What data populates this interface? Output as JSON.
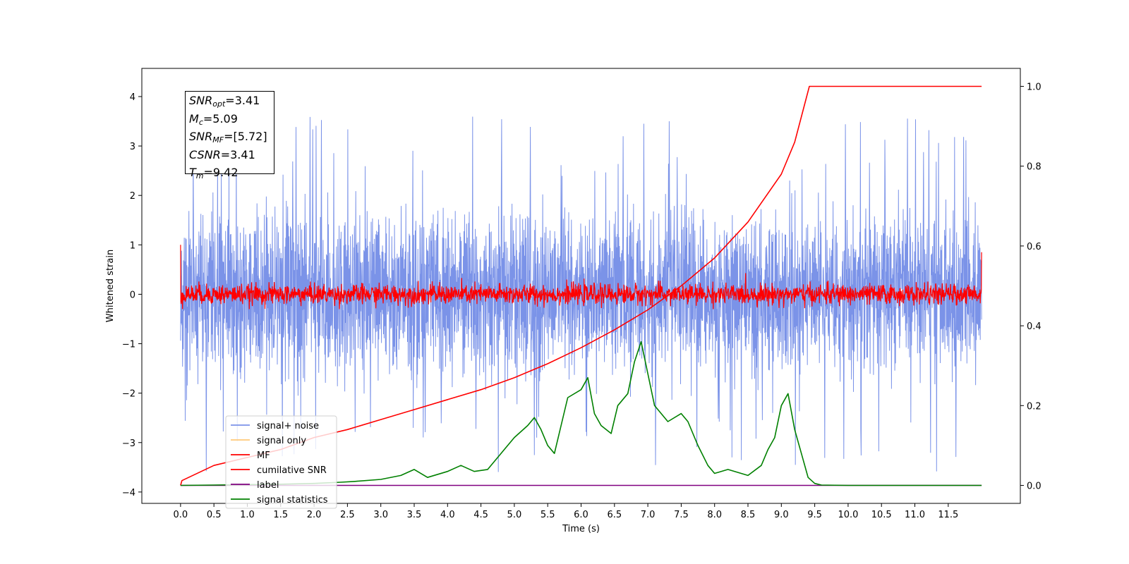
{
  "chart_data": {
    "type": "line",
    "title": "",
    "xlabel": "Time (s)",
    "ylabel": "Whitened strain",
    "xlim": [
      -0.58,
      12.58
    ],
    "ylim": [
      -4.23,
      4.57
    ],
    "y2lim": [
      -0.045,
      1.045
    ],
    "xticks": [
      "0.0",
      "0.5",
      "1.0",
      "1.5",
      "2.0",
      "2.5",
      "3.0",
      "3.5",
      "4.0",
      "4.5",
      "5.0",
      "5.5",
      "6.0",
      "6.5",
      "7.0",
      "7.5",
      "8.0",
      "8.5",
      "9.0",
      "9.5",
      "10.0",
      "10.5",
      "11.0",
      "11.5"
    ],
    "yticks": [
      "−4",
      "−3",
      "−2",
      "−1",
      "0",
      "1",
      "2",
      "3",
      "4"
    ],
    "y2ticks": [
      "0.0",
      "0.2",
      "0.4",
      "0.6",
      "0.8",
      "1.0"
    ],
    "legend_position": "lower-left",
    "grid": false,
    "series": [
      {
        "name": "signal+ noise",
        "color": "#7b93e8",
        "axis": "left",
        "x_range": [
          0.0,
          12.0
        ],
        "typical_band": [
          -1.5,
          1.5
        ],
        "peak_max": 4.18,
        "peak_min": -3.85
      },
      {
        "name": "signal only",
        "color": "#ffc97a",
        "axis": "left",
        "x_range": [
          0.0,
          12.0
        ],
        "values": []
      },
      {
        "name": "MF",
        "color": "#ff0000",
        "axis": "left",
        "x_range": [
          0.0,
          12.0
        ],
        "typical_band": [
          -0.3,
          0.3
        ],
        "start_value": 1.0,
        "end_value": 0.85
      },
      {
        "name": "cumilative SNR",
        "color": "#ff0000",
        "axis": "right",
        "x": [
          0.0,
          0.02,
          0.5,
          1.0,
          1.5,
          2.0,
          2.5,
          3.0,
          3.5,
          4.0,
          4.5,
          5.0,
          5.5,
          6.0,
          6.5,
          7.0,
          7.5,
          8.0,
          8.5,
          9.0,
          9.2,
          9.42,
          12.0
        ],
        "values": [
          0.0,
          0.012,
          0.05,
          0.07,
          0.09,
          0.12,
          0.14,
          0.165,
          0.19,
          0.215,
          0.24,
          0.27,
          0.305,
          0.345,
          0.39,
          0.44,
          0.5,
          0.57,
          0.66,
          0.78,
          0.86,
          1.0,
          1.0
        ]
      },
      {
        "name": "label",
        "color": "#800080",
        "axis": "right",
        "x": [
          0.0,
          12.0
        ],
        "values": [
          0.0,
          0.0
        ]
      },
      {
        "name": "signal statistics",
        "color": "#008000",
        "axis": "right",
        "x": [
          0.0,
          0.5,
          1.0,
          1.5,
          2.0,
          2.4,
          2.6,
          3.0,
          3.3,
          3.5,
          3.7,
          4.0,
          4.2,
          4.4,
          4.6,
          4.8,
          5.0,
          5.2,
          5.3,
          5.4,
          5.5,
          5.6,
          5.8,
          6.0,
          6.1,
          6.2,
          6.3,
          6.45,
          6.55,
          6.7,
          6.8,
          6.9,
          7.0,
          7.1,
          7.3,
          7.5,
          7.6,
          7.75,
          7.9,
          8.0,
          8.2,
          8.5,
          8.7,
          8.8,
          8.9,
          9.0,
          9.1,
          9.2,
          9.3,
          9.4,
          9.5,
          9.6,
          10.0,
          11.0,
          12.0
        ],
        "values": [
          0.0,
          0.001,
          0.002,
          0.003,
          0.005,
          0.008,
          0.01,
          0.015,
          0.025,
          0.04,
          0.02,
          0.035,
          0.05,
          0.035,
          0.04,
          0.08,
          0.12,
          0.15,
          0.17,
          0.14,
          0.1,
          0.08,
          0.22,
          0.24,
          0.27,
          0.18,
          0.15,
          0.13,
          0.2,
          0.23,
          0.31,
          0.36,
          0.28,
          0.2,
          0.16,
          0.18,
          0.16,
          0.1,
          0.05,
          0.03,
          0.04,
          0.025,
          0.05,
          0.09,
          0.12,
          0.2,
          0.23,
          0.14,
          0.08,
          0.02,
          0.005,
          0.001,
          0.0,
          0.0,
          0.0
        ]
      }
    ],
    "annotation": {
      "lines": [
        {
          "sym": "SNR",
          "sub": "opt",
          "val": "=3.41"
        },
        {
          "sym": "M",
          "sub": "c",
          "val": "=5.09"
        },
        {
          "sym": "SNR",
          "sub": "MF",
          "val": "=[5.72]"
        },
        {
          "sym": "CSNR",
          "sub": "",
          "val": "=3.41"
        },
        {
          "sym": "T",
          "sub": "m",
          "val": "=9.42"
        }
      ]
    }
  }
}
